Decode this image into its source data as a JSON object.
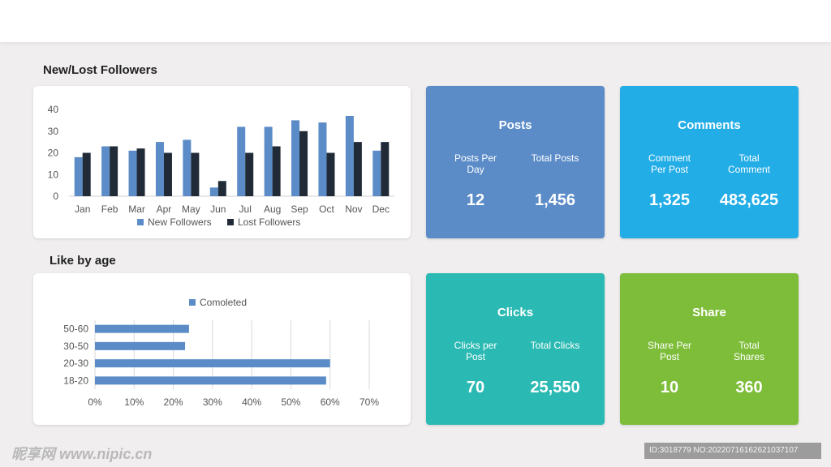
{
  "followers_panel": {
    "title": "New/Lost Followers"
  },
  "age_panel": {
    "title": "Like by age"
  },
  "colors": {
    "new_followers": "#5b8cc7",
    "lost_followers": "#212b38",
    "age_bar": "#5b8cc7",
    "posts_tile": "#5b8cc8",
    "comments_tile": "#23ade6",
    "clicks_tile": "#2bbab3",
    "share_tile": "#7ebd3a"
  },
  "chart_data": [
    {
      "type": "bar",
      "title": "",
      "categories": [
        "Jan",
        "Feb",
        "Mar",
        "Apr",
        "May",
        "Jun",
        "Jul",
        "Aug",
        "Sep",
        "Oct",
        "Nov",
        "Dec"
      ],
      "series": [
        {
          "name": "New Followers",
          "values": [
            18,
            23,
            21,
            25,
            26,
            4,
            32,
            32,
            35,
            34,
            37,
            21
          ]
        },
        {
          "name": "Lost Followers",
          "values": [
            20,
            23,
            22,
            20,
            20,
            7,
            20,
            23,
            30,
            20,
            25,
            25
          ]
        }
      ],
      "yticks": [
        "0",
        "10",
        "20",
        "30",
        "40"
      ],
      "ylim": [
        0,
        40
      ],
      "grid": false,
      "legend": "bottom"
    },
    {
      "type": "bar",
      "orientation": "horizontal",
      "title": "",
      "categories": [
        "50-60",
        "30-50",
        "20-30",
        "18-20"
      ],
      "series": [
        {
          "name": "Comoleted",
          "values": [
            24,
            23,
            60,
            59
          ]
        }
      ],
      "xticks": [
        "0%",
        "10%",
        "20%",
        "30%",
        "40%",
        "50%",
        "60%",
        "70%"
      ],
      "xlim": [
        0,
        70
      ],
      "grid": true,
      "legend": "top"
    }
  ],
  "tiles": {
    "posts": {
      "title": "Posts",
      "left_label": "Posts Per\nDay",
      "left_value": "12",
      "right_label": "Total Posts",
      "right_value": "1,456"
    },
    "comments": {
      "title": "Comments",
      "left_label": "Comment\nPer Post",
      "left_value": "1,325",
      "right_label": "Total\nComment",
      "right_value": "483,625"
    },
    "clicks": {
      "title": "Clicks",
      "left_label": "Clicks per\nPost",
      "left_value": "70",
      "right_label": "Total Clicks",
      "right_value": "25,550"
    },
    "share": {
      "title": "Share",
      "left_label": "Share Per\nPost",
      "left_value": "10",
      "right_label": "Total\nShares",
      "right_value": "360"
    }
  },
  "watermark": {
    "text": "昵享网 www.nipic.cn"
  },
  "image_id": {
    "text": "ID:3018779 NO:20220716162621037107"
  }
}
